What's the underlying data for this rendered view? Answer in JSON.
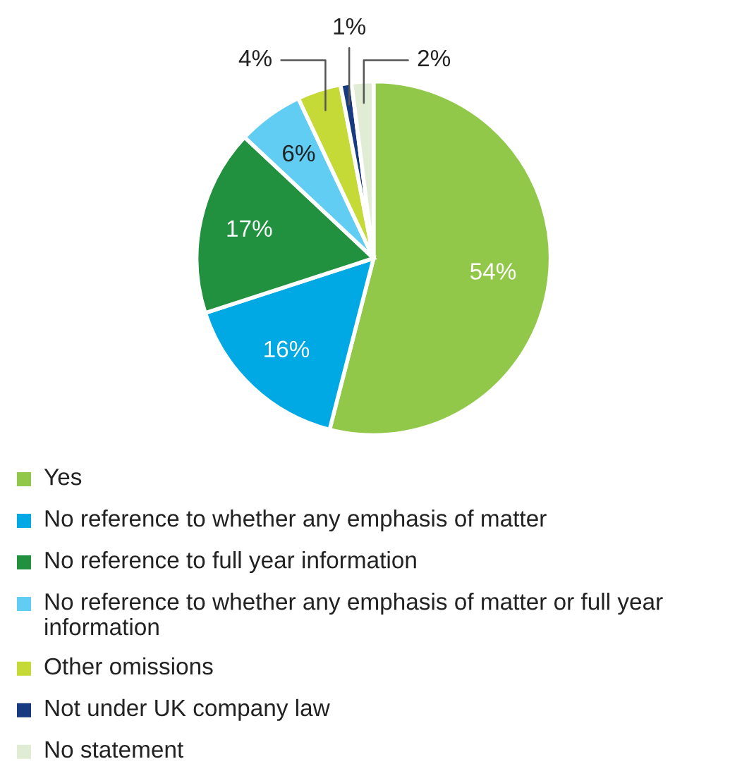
{
  "chart_data": {
    "type": "pie",
    "categories": [
      "Yes",
      "No reference to whether any emphasis of matter",
      "No reference to full year information",
      "No reference to whether any emphasis of matter or full year information",
      "Other omissions",
      "Not under UK company law",
      "No statement"
    ],
    "values": [
      54,
      16,
      17,
      6,
      4,
      1,
      2
    ],
    "colors": [
      "#92c84a",
      "#00a9e4",
      "#21913f",
      "#62cdf3",
      "#c5d937",
      "#173a80",
      "#e0ecd3"
    ],
    "value_labels": [
      "54%",
      "16%",
      "17%",
      "6%",
      "4%",
      "1%",
      "2%"
    ],
    "legend": "bottom"
  }
}
